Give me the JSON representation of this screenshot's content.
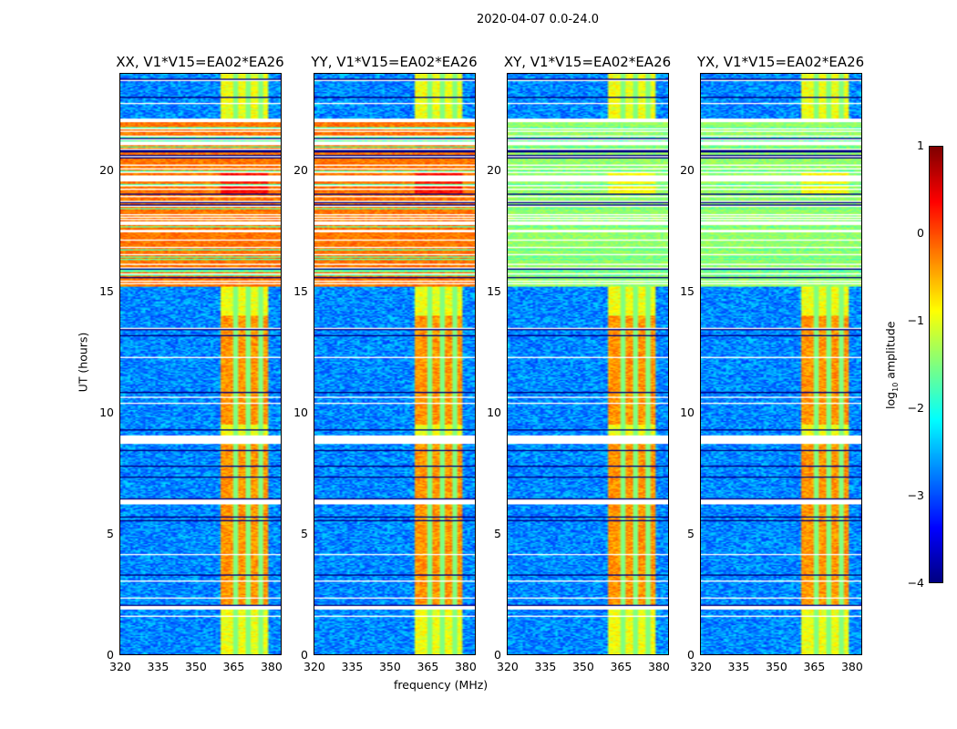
{
  "chart_data": {
    "type": "heatmap",
    "suptitle": "2020-04-07 0.0-24.0",
    "xlabel": "frequency (MHz)",
    "ylabel": "UT (hours)",
    "xlim": [
      320,
      384
    ],
    "ylim": [
      0,
      24
    ],
    "xticks": [
      "320",
      "335",
      "350",
      "365",
      "380"
    ],
    "xtick_values": [
      320,
      335,
      350,
      365,
      380
    ],
    "yticks": [
      "0",
      "5",
      "10",
      "15",
      "20"
    ],
    "ytick_values": [
      0,
      5,
      10,
      15,
      20
    ],
    "panels": [
      {
        "title": "XX, V1*V15=EA02*EA26",
        "pol": "XX"
      },
      {
        "title": "YY, V1*V15=EA02*EA26",
        "pol": "YY"
      },
      {
        "title": "XY, V1*V15=EA02*EA26",
        "pol": "XY"
      },
      {
        "title": "YX, V1*V15=EA02*EA26",
        "pol": "YX"
      }
    ],
    "colorbar": {
      "label_prefix": "log",
      "label_sub": "10",
      "label_suffix": " amplitude",
      "range": [
        -4,
        1
      ],
      "ticks": [
        "1",
        "0",
        "−1",
        "−2",
        "−3",
        "−4"
      ],
      "tick_values": [
        1,
        0,
        -1,
        -2,
        -3,
        -4
      ],
      "colormap": "jet"
    },
    "features": {
      "rfi_band_mhz": [
        360,
        379
      ],
      "flagged_hours": [
        [
          1.85,
          2.0
        ],
        [
          6.2,
          6.4
        ],
        [
          8.7,
          9.05
        ],
        [
          22.0,
          22.15
        ]
      ],
      "high_amplitude_hours": [
        15.2,
        22.0
      ]
    }
  }
}
